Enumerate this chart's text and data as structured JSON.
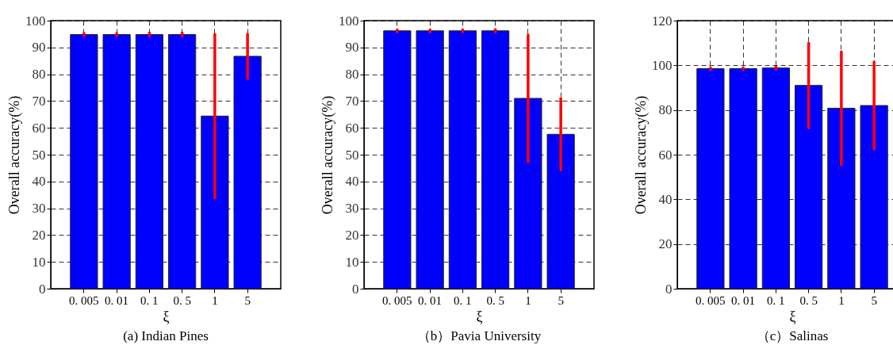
{
  "chart_data": [
    {
      "type": "bar",
      "xlabel": "ξ",
      "ylabel": "Overall accuracy(%)",
      "annotations": [
        "(a) Indian Pines"
      ],
      "categories": [
        "0. 005",
        "0. 01",
        "0. 1",
        "0. 5",
        "1",
        "5"
      ],
      "series": [
        {
          "color": "#0000ff",
          "values": [
            94.8,
            94.8,
            94.8,
            94.8,
            64.4,
            86.7
          ],
          "errors": [
            0.5,
            0.5,
            0.6,
            0.6,
            30.5,
            8.3
          ]
        }
      ],
      "ylim": [
        0,
        100
      ],
      "yticks": [
        0,
        10,
        20,
        30,
        40,
        50,
        60,
        70,
        80,
        90,
        100
      ],
      "grid": true
    },
    {
      "type": "bar",
      "xlabel": "ξ",
      "ylabel": "Overall accuracy(%)",
      "annotations": [
        "（b）Pavia University"
      ],
      "categories": [
        "0. 005",
        "0. 01",
        "0. 1",
        "0. 5",
        "1",
        "5"
      ],
      "series": [
        {
          "color": "#0000ff",
          "values": [
            96.2,
            96.2,
            96.2,
            96.2,
            71,
            57.6
          ],
          "errors": [
            0.4,
            0.4,
            0.4,
            0.5,
            23.7,
            13.3
          ]
        }
      ],
      "ylim": [
        0,
        100
      ],
      "yticks": [
        0,
        10,
        20,
        30,
        40,
        50,
        60,
        70,
        80,
        90,
        100
      ],
      "grid": true
    },
    {
      "type": "bar",
      "xlabel": "ξ",
      "ylabel": "Overall accuracy(%)",
      "annotations": [
        "（c）Salinas"
      ],
      "categories": [
        "0. 005",
        "0. 01",
        "0. 1",
        "0. 5",
        "1",
        "5"
      ],
      "series": [
        {
          "color": "#0000ff",
          "values": [
            98.5,
            98.5,
            98.8,
            91,
            80.8,
            82
          ],
          "errors": [
            0.5,
            0.5,
            0.5,
            19,
            25.3,
            19.5
          ]
        }
      ],
      "ylim": [
        0,
        120
      ],
      "yticks": [
        0,
        20,
        40,
        60,
        80,
        100,
        120
      ],
      "grid": true
    }
  ]
}
